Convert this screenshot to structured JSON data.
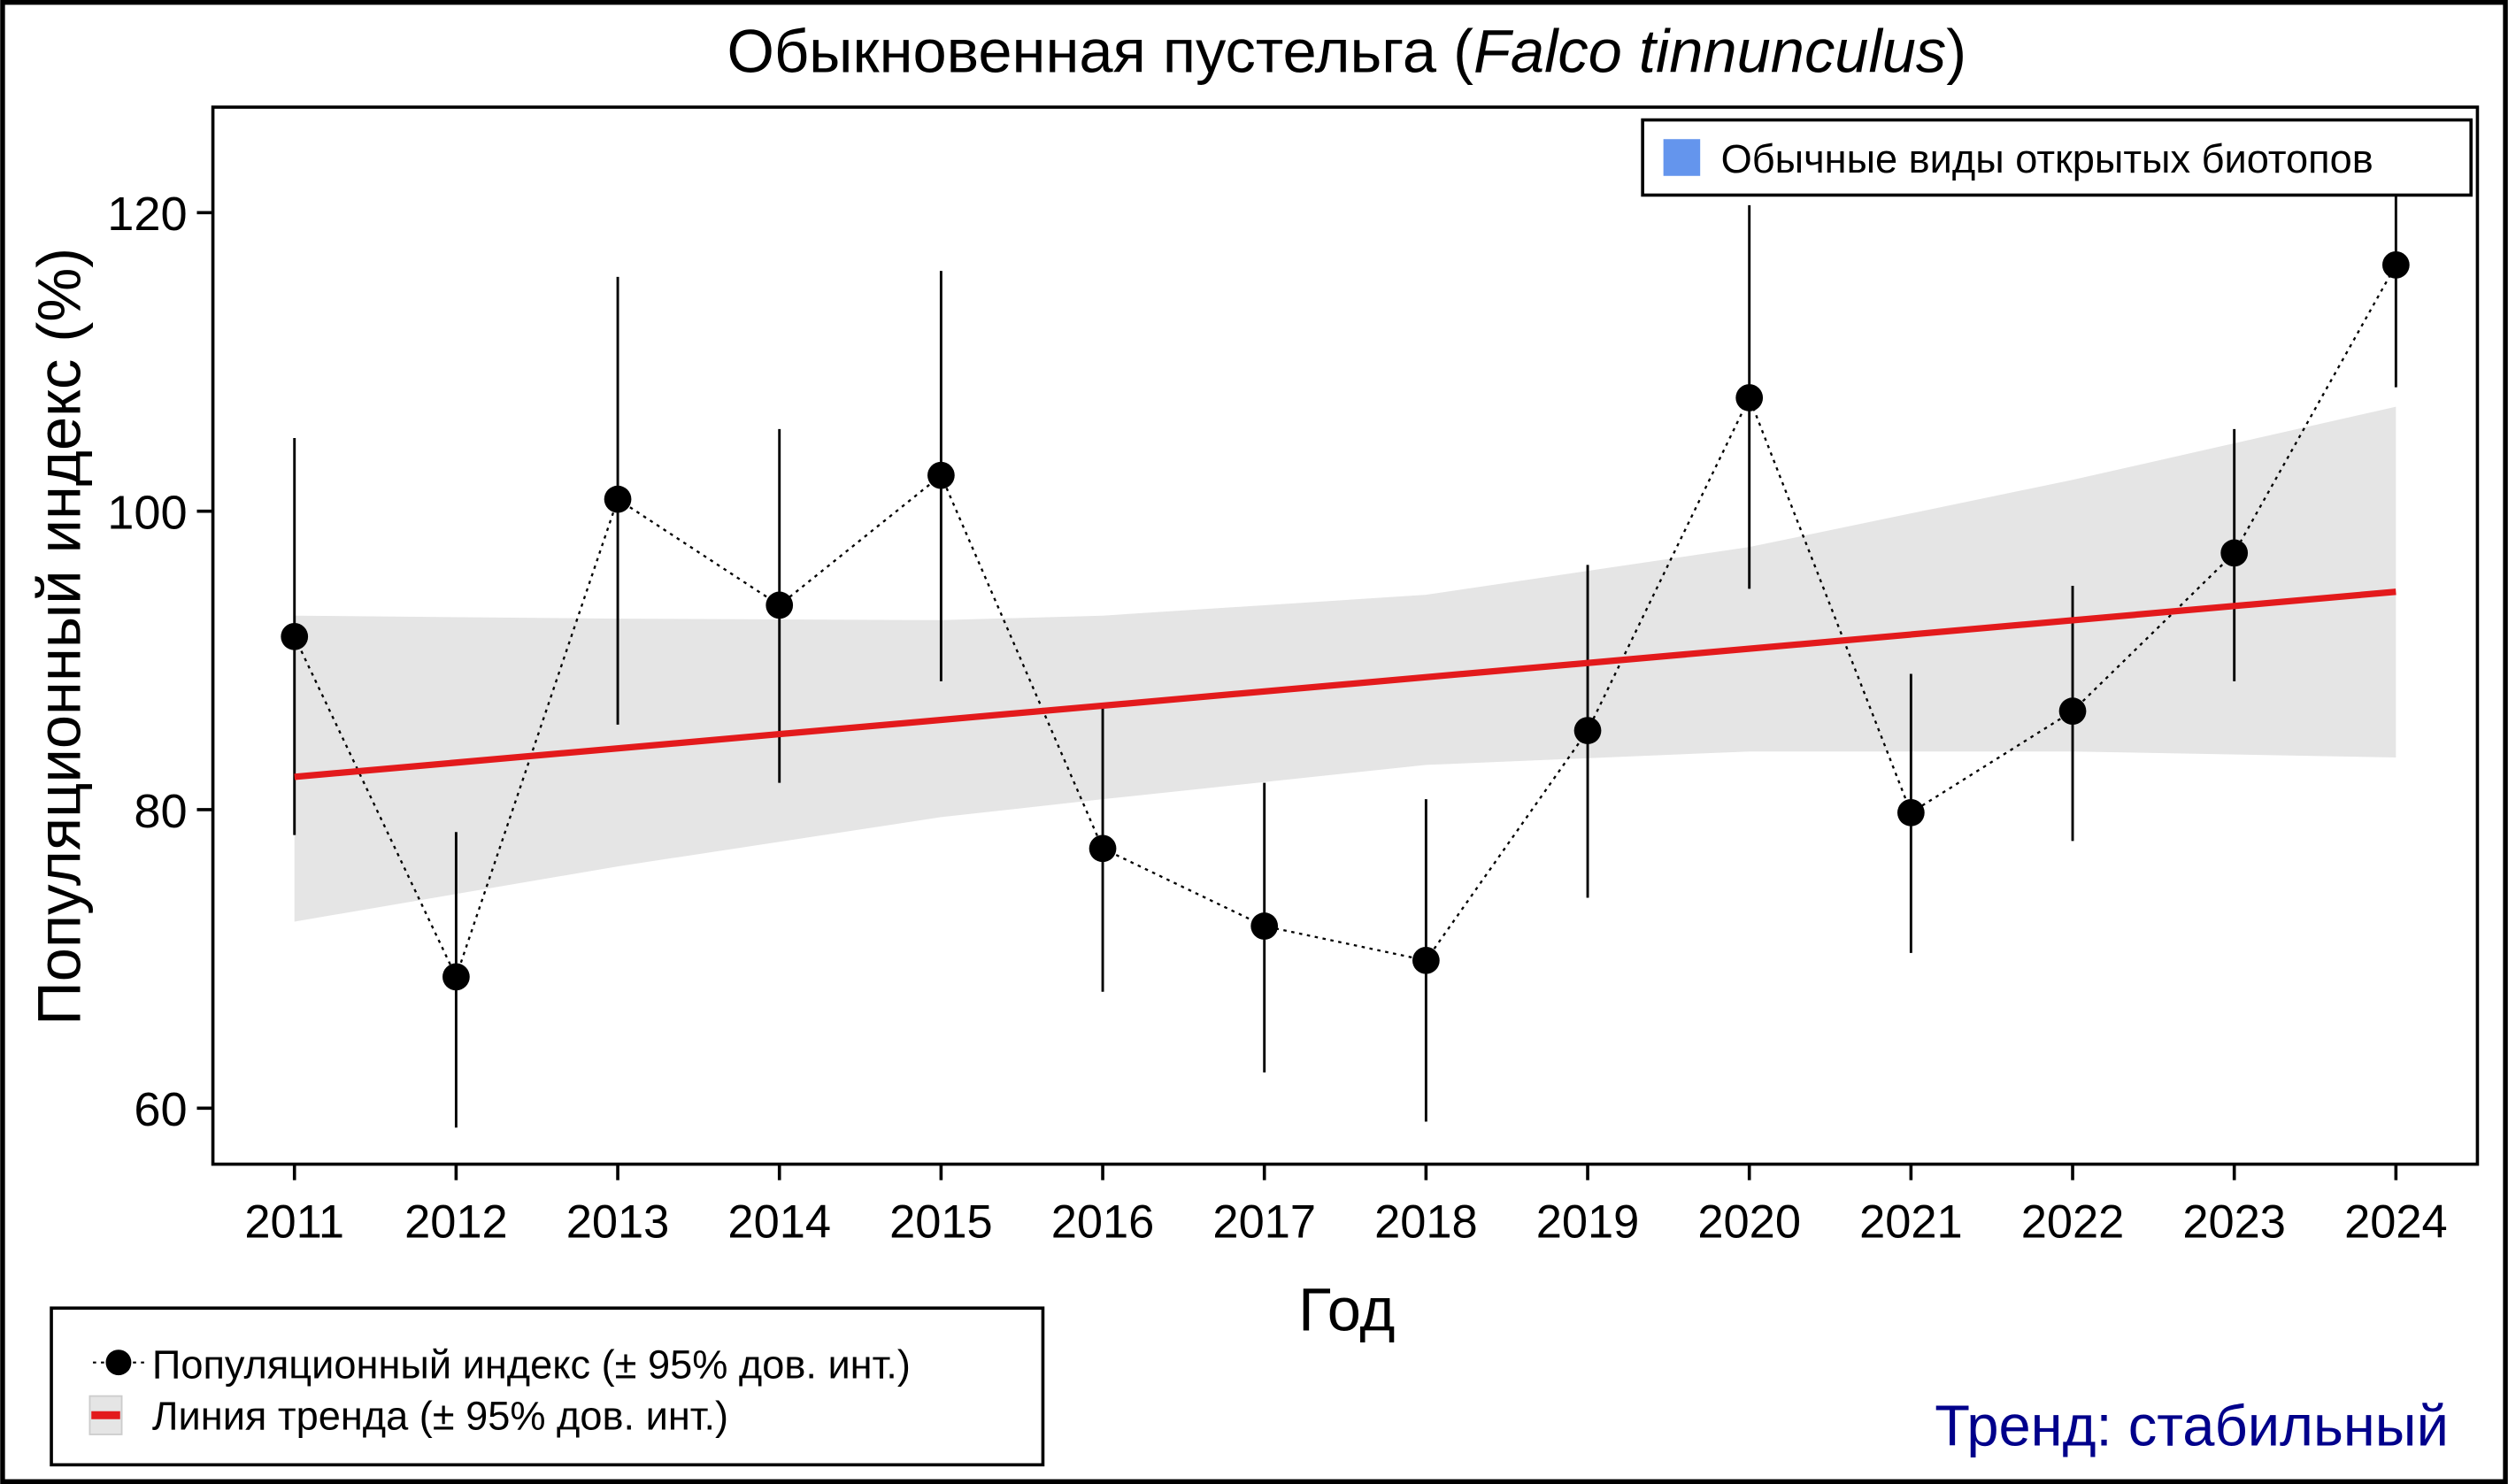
{
  "chart_data": {
    "type": "line",
    "title_main": "Обыкновенная пустельга (",
    "title_species": "Falco tinnunculus",
    "title_end": ")",
    "xlabel": "Год",
    "ylabel": "Популяционный индекс (%)",
    "ylim": [
      53,
      127
    ],
    "yticks": [
      60,
      80,
      100,
      120
    ],
    "x": [
      2011,
      2012,
      2013,
      2014,
      2015,
      2016,
      2017,
      2018,
      2019,
      2020,
      2021,
      2022,
      2023,
      2024
    ],
    "series": [
      {
        "name": "Популяционный индекс (± 95% дов. инт.)",
        "values": [
          91.6,
          68.8,
          100.8,
          93.7,
          102.4,
          77.4,
          72.2,
          69.9,
          85.3,
          107.6,
          79.8,
          86.6,
          97.2,
          116.5
        ],
        "lower": [
          78.3,
          58.7,
          85.7,
          81.8,
          88.6,
          67.8,
          62.4,
          59.1,
          74.1,
          94.8,
          70.4,
          77.9,
          88.6,
          108.3
        ],
        "upper": [
          104.9,
          78.5,
          115.7,
          105.5,
          116.1,
          87.0,
          81.8,
          80.7,
          96.4,
          120.5,
          89.1,
          95.0,
          105.5,
          121.5
        ]
      }
    ],
    "trend": {
      "name": "Линия тренда (± 95% дов. инт.)",
      "start": [
        2011,
        82.2
      ],
      "end": [
        2024,
        94.6
      ],
      "band_x": [
        2011,
        2013,
        2015,
        2016,
        2018,
        2020,
        2022,
        2024
      ],
      "band_upper": [
        93.0,
        92.8,
        92.7,
        93.0,
        94.4,
        97.6,
        102.1,
        107.0
      ],
      "band_lower": [
        72.5,
        76.2,
        79.5,
        80.7,
        83.0,
        83.9,
        83.9,
        83.5
      ]
    },
    "legend_group": "Обычные виды открытых биотопов",
    "trend_label": "Тренд: стабильный",
    "colors": {
      "trend": "#e31a1c",
      "band": "#e5e5e5",
      "group": "#6495ed",
      "trend_label": "#00008b"
    }
  }
}
